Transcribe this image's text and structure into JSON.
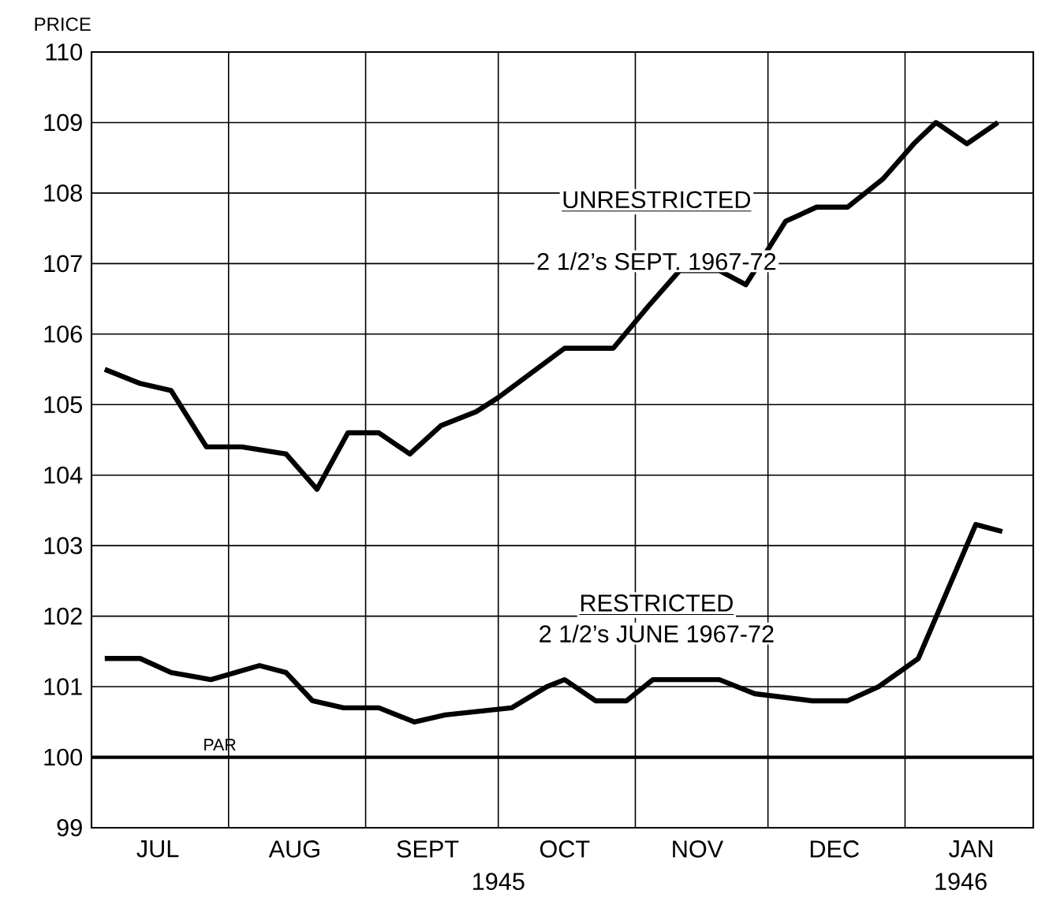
{
  "chart_data": {
    "type": "line",
    "ylabel": "PRICE",
    "xlim": [
      "1945-07-01",
      "1946-01-30"
    ],
    "ylim": [
      99,
      110
    ],
    "xticks": [
      {
        "value": "1945-07-16",
        "label": "JUL"
      },
      {
        "value": "1945-08-01",
        "label": null
      },
      {
        "value": "1945-08-16",
        "label": "AUG"
      },
      {
        "value": "1945-09-01",
        "label": null
      },
      {
        "value": "1945-09-15",
        "label": "SEPT"
      },
      {
        "value": "1945-10-01",
        "label": null
      },
      {
        "value": "1945-10-16",
        "label": "OCT"
      },
      {
        "value": "1945-11-01",
        "label": null
      },
      {
        "value": "1945-11-15",
        "label": "NOV"
      },
      {
        "value": "1945-12-01",
        "label": null
      },
      {
        "value": "1945-12-16",
        "label": "DEC"
      },
      {
        "value": "1946-01-01",
        "label": null
      },
      {
        "value": "1946-01-16",
        "label": "JAN"
      }
    ],
    "yticks": [
      99,
      100,
      101,
      102,
      103,
      104,
      105,
      106,
      107,
      108,
      109,
      110
    ],
    "grid": true,
    "series": [
      {
        "name": "UNRESTRICTED",
        "color": "#000000",
        "x": [
          "1945-07-04",
          "1945-07-12",
          "1945-07-19",
          "1945-07-27",
          "1945-08-04",
          "1945-08-14",
          "1945-08-21",
          "1945-08-28",
          "1945-09-04",
          "1945-09-11",
          "1945-09-18",
          "1945-09-26",
          "1945-10-01",
          "1945-10-16",
          "1945-10-27",
          "1945-11-04",
          "1945-11-11",
          "1945-11-20",
          "1945-11-26",
          "1945-12-05",
          "1945-12-12",
          "1945-12-19",
          "1945-12-27",
          "1946-01-03",
          "1946-01-08",
          "1946-01-15",
          "1946-01-22"
        ],
        "values": [
          105.5,
          105.3,
          105.2,
          104.4,
          104.4,
          104.3,
          103.8,
          104.6,
          104.6,
          104.3,
          104.7,
          104.9,
          105.1,
          105.8,
          105.8,
          106.4,
          106.9,
          106.9,
          106.7,
          107.6,
          107.8,
          107.8,
          108.2,
          108.7,
          109.0,
          108.7,
          109.0
        ]
      },
      {
        "name": "RESTRICTED",
        "color": "#000000",
        "x": [
          "1945-07-04",
          "1945-07-12",
          "1945-07-19",
          "1945-07-28",
          "1945-08-08",
          "1945-08-14",
          "1945-08-20",
          "1945-08-27",
          "1945-09-04",
          "1945-09-12",
          "1945-09-19",
          "1945-10-04",
          "1945-10-12",
          "1945-10-16",
          "1945-10-23",
          "1945-10-30",
          "1945-11-05",
          "1945-11-11",
          "1945-11-20",
          "1945-11-28",
          "1945-12-11",
          "1945-12-19",
          "1945-12-26",
          "1946-01-04",
          "1946-01-17",
          "1946-01-23"
        ],
        "values": [
          101.4,
          101.4,
          101.2,
          101.1,
          101.3,
          101.2,
          100.8,
          100.7,
          100.7,
          100.5,
          100.6,
          100.7,
          101.0,
          101.1,
          100.8,
          100.8,
          101.1,
          101.1,
          101.1,
          100.9,
          100.8,
          100.8,
          101.0,
          101.4,
          103.3,
          103.2
        ]
      }
    ],
    "ref_lines": [
      {
        "axis": "y",
        "value": 100,
        "label": "PAR",
        "color": "#000000"
      }
    ],
    "annotations": [
      "2 1/2’s SEPT. 1967-72",
      "2 1/2’s JUNE 1967-72",
      "1945",
      "1946"
    ]
  }
}
